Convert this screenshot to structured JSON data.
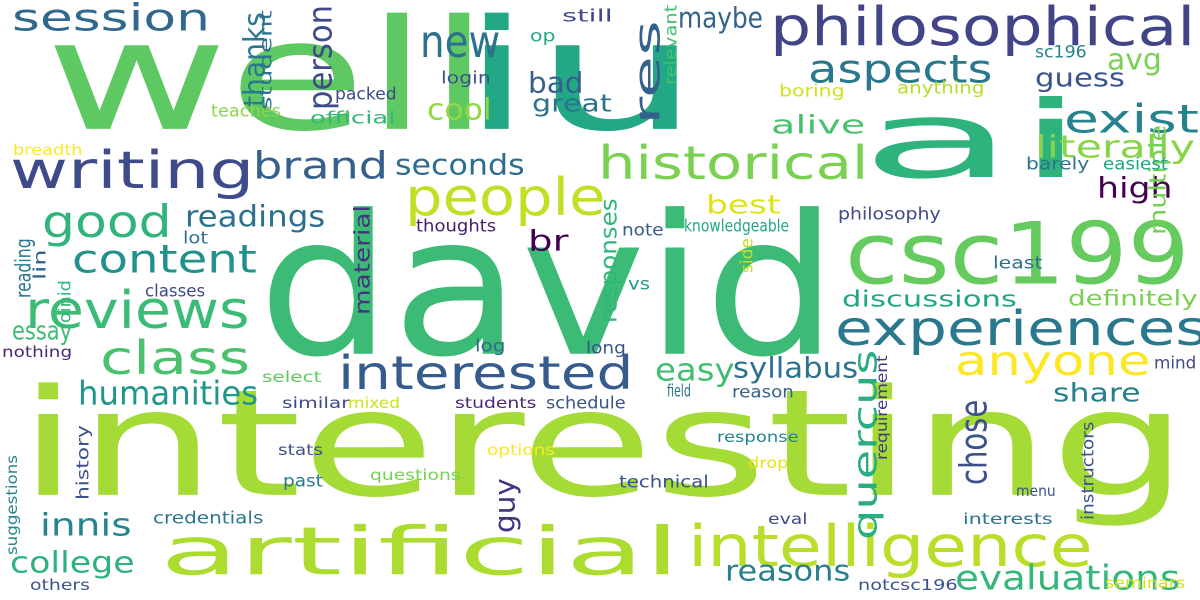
{
  "words": [
    {
      "text": "interesting",
      "color": "#a5db36"
    },
    {
      "text": "david",
      "color": "#3bbb75"
    },
    {
      "text": "ai",
      "color": "#2eb37c"
    },
    {
      "text": "well",
      "color": "#5ec962"
    },
    {
      "text": "iu",
      "color": "#22a884"
    },
    {
      "text": "artificial",
      "color": "#addc30"
    },
    {
      "text": "csc199",
      "color": "#65cb5e"
    },
    {
      "text": "philosophical",
      "color": "#414487"
    },
    {
      "text": "intelligence",
      "color": "#b8de29"
    },
    {
      "text": "experiences",
      "color": "#2a788e"
    },
    {
      "text": "writing",
      "color": "#3e4a89"
    },
    {
      "text": "interested",
      "color": "#365c8d"
    },
    {
      "text": "reviews",
      "color": "#3bbb75"
    },
    {
      "text": "people",
      "color": "#c0df25"
    },
    {
      "text": "anyone",
      "color": "#fde725"
    },
    {
      "text": "historical",
      "color": "#7ad151"
    },
    {
      "text": "class",
      "color": "#4ac16d"
    },
    {
      "text": "good",
      "color": "#2fb47c"
    },
    {
      "text": "content",
      "color": "#21918c"
    },
    {
      "text": "session",
      "color": "#31688e"
    },
    {
      "text": "new",
      "color": "#2c728e"
    },
    {
      "text": "aspects",
      "color": "#2a788e"
    },
    {
      "text": "brand",
      "color": "#355f8d"
    },
    {
      "text": "exist",
      "color": "#26828e"
    },
    {
      "text": "evaluations",
      "color": "#35b779"
    },
    {
      "text": "college",
      "color": "#2db27d"
    },
    {
      "text": "reasons",
      "color": "#277f8e"
    },
    {
      "text": "innis",
      "color": "#25858e"
    },
    {
      "text": "humanities",
      "color": "#1f968b"
    },
    {
      "text": "literally",
      "color": "#86d549"
    },
    {
      "text": "easy",
      "color": "#42be71"
    },
    {
      "text": "quercus",
      "color": "#28ae80"
    },
    {
      "text": "chose",
      "color": "#3b528b"
    },
    {
      "text": "discussions",
      "color": "#21a685"
    },
    {
      "text": "readings",
      "color": "#2d708e"
    },
    {
      "text": "seconds",
      "color": "#2f6b8e"
    },
    {
      "text": "syllabus",
      "color": "#2c728e"
    },
    {
      "text": "maybe",
      "color": "#33638d"
    },
    {
      "text": "guess",
      "color": "#3a548c"
    },
    {
      "text": "avg",
      "color": "#7ad151"
    },
    {
      "text": "res",
      "color": "#34608d"
    },
    {
      "text": "person",
      "color": "#3e4a89"
    },
    {
      "text": "thanks",
      "color": "#2a788e"
    },
    {
      "text": "bad",
      "color": "#355f8d"
    },
    {
      "text": "great",
      "color": "#2c728e"
    },
    {
      "text": "cool",
      "color": "#90d743"
    },
    {
      "text": "alive",
      "color": "#4ac16d"
    },
    {
      "text": "high",
      "color": "#440154"
    },
    {
      "text": "best",
      "color": "#dde318"
    },
    {
      "text": "br",
      "color": "#440154"
    },
    {
      "text": "share",
      "color": "#277f8e"
    },
    {
      "text": "definitely",
      "color": "#7ad151"
    },
    {
      "text": "guy",
      "color": "#46327e"
    },
    {
      "text": "responses",
      "color": "#31b57b"
    },
    {
      "text": "material",
      "color": "#46327e"
    },
    {
      "text": "essay",
      "color": "#3dbc74"
    },
    {
      "text": "multiple",
      "color": "#75d054"
    },
    {
      "text": "reading",
      "color": "#2a788e"
    },
    {
      "text": "thoughts",
      "color": "#481b6d"
    },
    {
      "text": "lot",
      "color": "#2c728e"
    },
    {
      "text": "philosophy",
      "color": "#3e4a89"
    },
    {
      "text": "knowledgeable",
      "color": "#22a884"
    },
    {
      "text": "note",
      "color": "#365c8d"
    },
    {
      "text": "least",
      "color": "#2e6e8e"
    },
    {
      "text": "easiest",
      "color": "#20a386"
    },
    {
      "text": "barely",
      "color": "#2c728e"
    },
    {
      "text": "sc196",
      "color": "#26828e"
    },
    {
      "text": "boring",
      "color": "#d2e21b"
    },
    {
      "text": "anything",
      "color": "#b5de2b"
    },
    {
      "text": "relevant",
      "color": "#44bf70"
    },
    {
      "text": "still",
      "color": "#3e4a89"
    },
    {
      "text": "op",
      "color": "#22a884"
    },
    {
      "text": "login",
      "color": "#3b528b"
    },
    {
      "text": "packed",
      "color": "#3e4a89"
    },
    {
      "text": "official",
      "color": "#35b779"
    },
    {
      "text": "teaches",
      "color": "#8bd646"
    },
    {
      "text": "student",
      "color": "#2c728e"
    },
    {
      "text": "breadth",
      "color": "#fde725"
    },
    {
      "text": "lin",
      "color": "#33638d"
    },
    {
      "text": "joinid",
      "color": "#31b57b"
    },
    {
      "text": "classes",
      "color": "#3e4a89"
    },
    {
      "text": "vs",
      "color": "#1f988b"
    },
    {
      "text": "side",
      "color": "#c2df23"
    },
    {
      "text": "nothing",
      "color": "#482878"
    },
    {
      "text": "log",
      "color": "#31688e"
    },
    {
      "text": "long",
      "color": "#3b528b"
    },
    {
      "text": "select",
      "color": "#5ec962"
    },
    {
      "text": "mixed",
      "color": "#d0e11c"
    },
    {
      "text": "similar",
      "color": "#3e4a89"
    },
    {
      "text": "field",
      "color": "#2c728e"
    },
    {
      "text": "students",
      "color": "#482878"
    },
    {
      "text": "schedule",
      "color": "#3b528b"
    },
    {
      "text": "reason",
      "color": "#33638d"
    },
    {
      "text": "requirement",
      "color": "#443983"
    },
    {
      "text": "mind",
      "color": "#3e4a89"
    },
    {
      "text": "history",
      "color": "#3b528b"
    },
    {
      "text": "suggestions",
      "color": "#26828e"
    },
    {
      "text": "options",
      "color": "#fde725"
    },
    {
      "text": "stats",
      "color": "#3b528b"
    },
    {
      "text": "questions",
      "color": "#75d054"
    },
    {
      "text": "past",
      "color": "#2a788e"
    },
    {
      "text": "response",
      "color": "#25858e"
    },
    {
      "text": "drop",
      "color": "#e5e419"
    },
    {
      "text": "technical",
      "color": "#3b528b"
    },
    {
      "text": "instructors",
      "color": "#3b528b"
    },
    {
      "text": "menu",
      "color": "#3b528b"
    },
    {
      "text": "eval",
      "color": "#3e4a89"
    },
    {
      "text": "interests",
      "color": "#2c728e"
    },
    {
      "text": "credentials",
      "color": "#2a788e"
    },
    {
      "text": "seminars",
      "color": "#d8e219"
    },
    {
      "text": "notcsc196",
      "color": "#3b528b"
    },
    {
      "text": "others",
      "color": "#3b528b"
    }
  ]
}
